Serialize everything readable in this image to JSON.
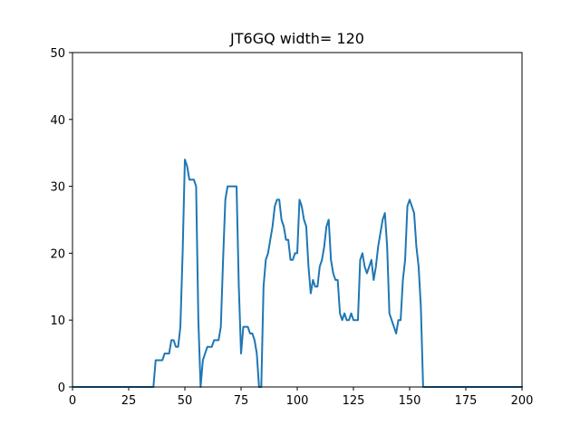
{
  "chart_data": {
    "type": "line",
    "title": "JT6GQ width= 120",
    "xlabel": "",
    "ylabel": "",
    "xlim": [
      0,
      200
    ],
    "ylim": [
      0,
      50
    ],
    "xticks": [
      0,
      25,
      50,
      75,
      100,
      125,
      150,
      175,
      200
    ],
    "yticks": [
      0,
      10,
      20,
      30,
      40,
      50
    ],
    "grid": false,
    "legend": "none",
    "series": [
      {
        "color": "#1f77b4",
        "x": [
          0,
          36,
          37,
          38,
          39,
          40,
          41,
          42,
          43,
          44,
          45,
          46,
          47,
          48,
          49,
          50,
          51,
          52,
          53,
          54,
          55,
          56,
          57,
          58,
          59,
          60,
          61,
          62,
          63,
          64,
          65,
          66,
          67,
          68,
          69,
          70,
          71,
          72,
          73,
          74,
          75,
          76,
          77,
          78,
          79,
          80,
          81,
          82,
          83,
          84,
          85,
          86,
          87,
          88,
          89,
          90,
          91,
          92,
          93,
          94,
          95,
          96,
          97,
          98,
          99,
          100,
          101,
          102,
          103,
          104,
          105,
          106,
          107,
          108,
          109,
          110,
          111,
          112,
          113,
          114,
          115,
          116,
          117,
          118,
          119,
          120,
          121,
          122,
          123,
          124,
          125,
          126,
          127,
          128,
          129,
          130,
          131,
          132,
          133,
          134,
          135,
          136,
          137,
          138,
          139,
          140,
          141,
          142,
          143,
          144,
          145,
          146,
          147,
          148,
          149,
          150,
          151,
          152,
          153,
          154,
          155,
          156,
          157,
          200
        ],
        "y": [
          0,
          0,
          4,
          4,
          4,
          4,
          5,
          5,
          5,
          7,
          7,
          6,
          6,
          9,
          20,
          34,
          33,
          31,
          31,
          31,
          30,
          10,
          0,
          4,
          5,
          6,
          6,
          6,
          7,
          7,
          7,
          9,
          19,
          28,
          30,
          30,
          30,
          30,
          30,
          15,
          5,
          9,
          9,
          9,
          8,
          8,
          7,
          5,
          0,
          0,
          15,
          19,
          20,
          22,
          24,
          27,
          28,
          28,
          25,
          24,
          22,
          22,
          19,
          19,
          20,
          20,
          28,
          27,
          25,
          24,
          18,
          14,
          16,
          15,
          15,
          18,
          19,
          21,
          24,
          25,
          19,
          17,
          16,
          16,
          11,
          10,
          11,
          10,
          10,
          11,
          10,
          10,
          10,
          19,
          20,
          18,
          17,
          18,
          19,
          16,
          18,
          21,
          23,
          25,
          26,
          21,
          11,
          10,
          9,
          8,
          10,
          10,
          16,
          19,
          27,
          28,
          27,
          26,
          21,
          18,
          12,
          0,
          0,
          0
        ]
      }
    ]
  }
}
